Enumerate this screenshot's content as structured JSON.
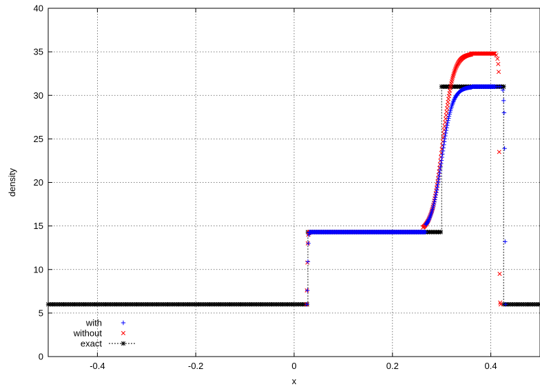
{
  "chart_data": {
    "type": "scatter",
    "title": "",
    "xlabel": "x",
    "ylabel": "density",
    "xlim": [
      -0.5,
      0.5
    ],
    "ylim": [
      0,
      40
    ],
    "grid": true,
    "legend_position": "bottom-left",
    "x_ticks": [
      -0.4,
      -0.2,
      0,
      0.2,
      0.4
    ],
    "x_tick_labels": [
      "-0.4",
      "-0.2",
      "0",
      "0.2",
      "0.4"
    ],
    "y_ticks": [
      0,
      5,
      10,
      15,
      20,
      25,
      30,
      35,
      40
    ],
    "y_tick_labels": [
      "0",
      "5",
      "10",
      "15",
      "20",
      "25",
      "30",
      "35",
      "40"
    ],
    "series": [
      {
        "name": "with",
        "marker": "+",
        "color": "#0000ff",
        "x": [
          0.026,
          0.027,
          0.028,
          0.029,
          0.03,
          0.031,
          0.409,
          0.412,
          0.416,
          0.42,
          0.4245,
          0.426,
          0.427,
          0.428,
          0.429,
          0.43
        ],
        "y": [
          6.0,
          7.6,
          10.9,
          13.0,
          14.0,
          14.2,
          31.0,
          31.0,
          31.0,
          31.0,
          30.6,
          29.4,
          28.0,
          23.9,
          13.2,
          6.0
        ]
      },
      {
        "name": "without",
        "marker": "x",
        "color": "#ff0000",
        "x": [
          0.025,
          0.026,
          0.027,
          0.028,
          0.029,
          0.03,
          0.031,
          0.4085,
          0.411,
          0.4135,
          0.415,
          0.416,
          0.417,
          0.418,
          0.419,
          0.42
        ],
        "y": [
          6.0,
          7.6,
          10.8,
          13.0,
          14.0,
          14.2,
          14.2,
          34.8,
          34.6,
          34.2,
          33.6,
          32.7,
          23.5,
          9.5,
          6.2,
          6.0
        ]
      },
      {
        "name": "exact",
        "marker": "*",
        "line": "dashed",
        "color": "#000000",
        "x": [
          -0.5,
          0.028,
          0.028,
          0.3,
          0.3,
          0.426,
          0.426,
          0.5
        ],
        "y": [
          6.0,
          6.0,
          14.3,
          14.3,
          31.0,
          31.0,
          6.0,
          6.0
        ]
      }
    ],
    "curves": {
      "with": {
        "flat": [
          [
            0.031,
            0.268,
            14.3
          ],
          [
            0.362,
            0.409,
            31.0
          ]
        ],
        "transition": {
          "x0": 0.3,
          "width": 0.011,
          "low": 14.3,
          "high": 31.0,
          "x_start": 0.268,
          "x_end": 0.362
        }
      },
      "without": {
        "flat": [
          [
            0.031,
            0.262,
            14.3
          ],
          [
            0.36,
            0.4085,
            34.8
          ]
        ],
        "transition": {
          "x0": 0.302,
          "width": 0.011,
          "low": 14.3,
          "high": 34.8,
          "x_start": 0.262,
          "x_end": 0.36
        }
      }
    }
  },
  "colors": {
    "with": "#0000ff",
    "without": "#ff0000",
    "exact": "#000000",
    "grid": "#555555"
  }
}
